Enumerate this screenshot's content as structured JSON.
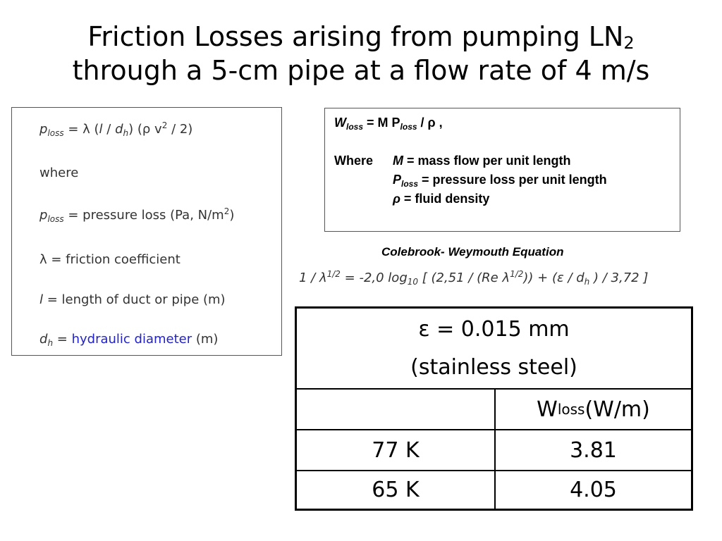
{
  "title": {
    "line1_main": "Friction Losses arising from pumping LN",
    "line1_sub": "2",
    "line2": "through a 5-cm pipe at a flow rate of 4 m/s"
  },
  "left_box": {
    "eq": {
      "p": "p",
      "p_sub": "loss",
      "mid1": " = λ (",
      "l": "l",
      "slash": " / ",
      "d": "d",
      "d_sub": "h",
      "mid2": ") (ρ v",
      "sup": "2",
      "end": " / 2)"
    },
    "where": "where",
    "ploss_line": {
      "p": "p",
      "sub": "loss",
      "text": " = pressure loss (Pa, N/m",
      "sup": "2",
      "end": ")"
    },
    "lambda_line": "λ = friction coefficient",
    "l_line": {
      "l": "l",
      "text": " = length of duct or pipe (m)"
    },
    "dh_line": {
      "d": "d",
      "sub": "h",
      "eq": " = ",
      "link": "hydraulic diameter",
      "end": " (m)"
    }
  },
  "right_box": {
    "eq": {
      "w": "W",
      "w_sub": "loss",
      "mid": " = M P",
      "p_sub": "loss",
      "end": " / ρ ,"
    },
    "where": "Where",
    "m_line": {
      "sym": "M",
      "text": " = mass flow per unit length"
    },
    "p_line": {
      "sym": "P",
      "sub": "loss",
      "text": " = pressure loss per unit length"
    },
    "rho_line": {
      "sym": "ρ",
      "text": " = fluid density"
    }
  },
  "colebrook": {
    "title": "Colebrook- Weymouth Equation",
    "eq": {
      "a": "1 / λ",
      "a_sup": "1/2",
      "b": " = -2,0 log",
      "b_sub": "10",
      "c": " [ (2,51 / (Re λ",
      "c_sup": "1/2",
      "d": ")) + (ε / d",
      "d_sub": "h",
      "e": " ) / 3,72 ]"
    }
  },
  "table": {
    "header_line1": "ε = 0.015 mm",
    "header_line2": "(stainless steel)",
    "col_header": {
      "w": "W",
      "sub": "loss",
      "unit": " (W/m)"
    },
    "rows": [
      {
        "temp": "77 K",
        "value": "3.81"
      },
      {
        "temp": "65 K",
        "value": "4.05"
      }
    ]
  }
}
